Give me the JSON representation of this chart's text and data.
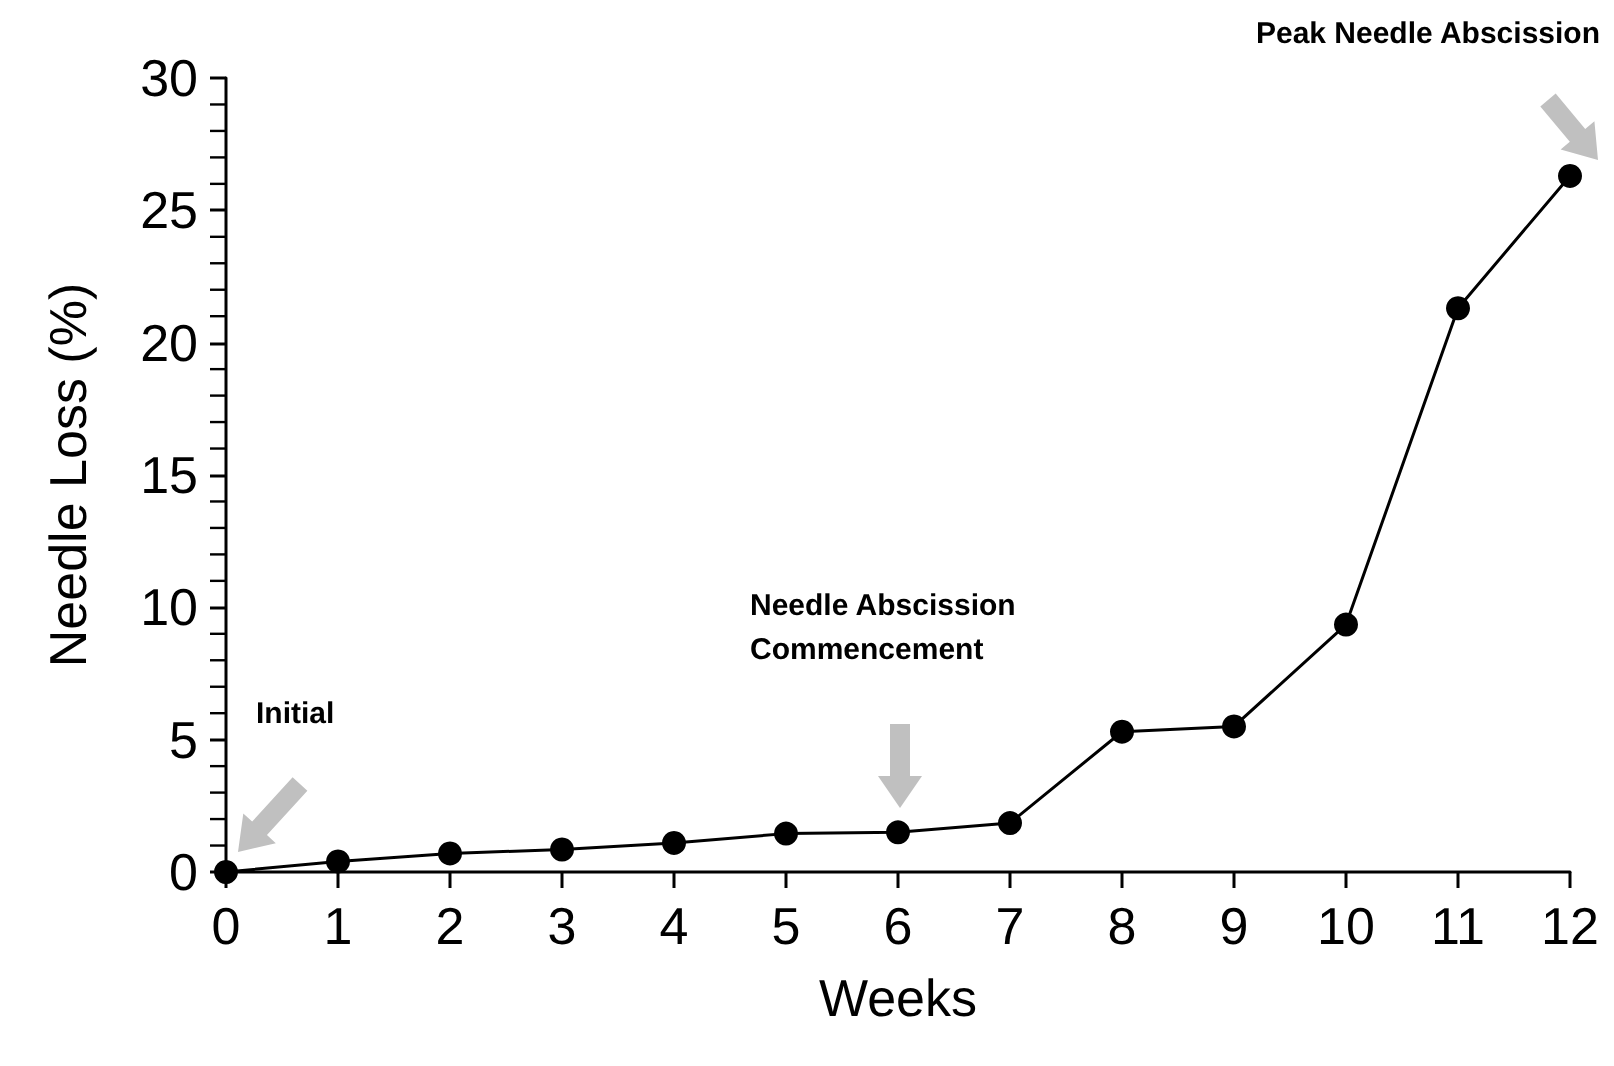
{
  "chart_data": {
    "type": "line",
    "xlabel": "Weeks",
    "ylabel": "Needle Loss (%)",
    "x": [
      0,
      1,
      2,
      3,
      4,
      5,
      6,
      7,
      8,
      9,
      10,
      11,
      12
    ],
    "series": [
      {
        "color": "#000000",
        "values": [
          0,
          0.4,
          0.7,
          0.85,
          1.1,
          1.45,
          1.5,
          1.85,
          5.3,
          5.5,
          9.35,
          21.3,
          26.3
        ]
      }
    ],
    "xlim": [
      0,
      12
    ],
    "xticks": [
      0,
      1,
      2,
      3,
      4,
      5,
      6,
      7,
      8,
      9,
      10,
      11,
      12
    ],
    "ylim": [
      0,
      30
    ],
    "yticks": [
      0,
      5,
      10,
      15,
      20,
      25,
      30
    ],
    "grid": false,
    "marker": "circle",
    "line_style": "solid",
    "annotations": [
      "Initial",
      "Needle Abscission Commencement",
      "Peak Needle Abscission"
    ]
  }
}
